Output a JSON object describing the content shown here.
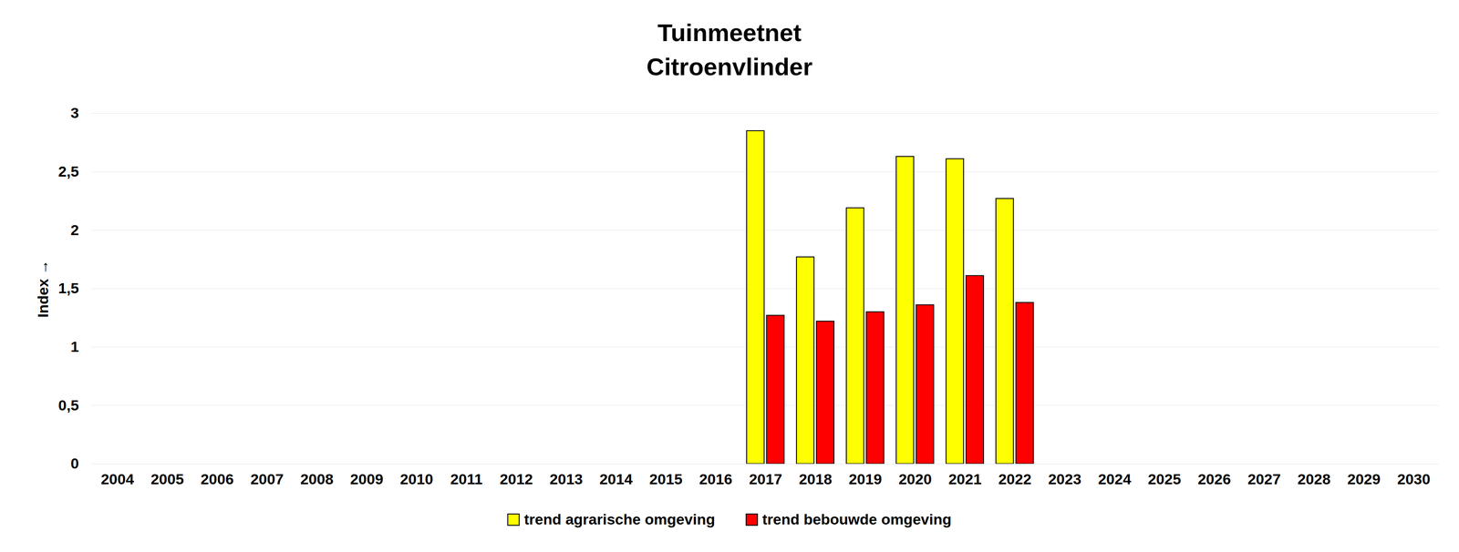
{
  "chart_data": {
    "type": "bar",
    "title": "Tuinmeetnet",
    "subtitle": "Citroenvlinder",
    "y_label": "Index",
    "categories": [
      "2004",
      "2005",
      "2006",
      "2007",
      "2008",
      "2009",
      "2010",
      "2011",
      "2012",
      "2013",
      "2014",
      "2015",
      "2016",
      "2017",
      "2018",
      "2019",
      "2020",
      "2021",
      "2022",
      "2023",
      "2024",
      "2025",
      "2026",
      "2027",
      "2028",
      "2029",
      "2030"
    ],
    "series": [
      {
        "name": "trend agrarische omgeving",
        "color": "#ffff00",
        "values": [
          null,
          null,
          null,
          null,
          null,
          null,
          null,
          null,
          null,
          null,
          null,
          null,
          null,
          2.85,
          1.77,
          2.19,
          2.63,
          2.61,
          2.27,
          null,
          null,
          null,
          null,
          null,
          null,
          null,
          null
        ]
      },
      {
        "name": "trend bebouwde omgeving",
        "color": "#ff0000",
        "values": [
          null,
          null,
          null,
          null,
          null,
          null,
          null,
          null,
          null,
          null,
          null,
          null,
          null,
          1.27,
          1.22,
          1.3,
          1.36,
          1.61,
          1.38,
          null,
          null,
          null,
          null,
          null,
          null,
          null,
          null
        ]
      }
    ],
    "ylim": [
      0,
      3
    ],
    "yticks": [
      0,
      {
        "value": 0.5,
        "label": "0,5"
      },
      1,
      {
        "value": 1.5,
        "label": "1,5"
      },
      2,
      {
        "value": 2.5,
        "label": "2,5"
      },
      3
    ],
    "grid": true,
    "legend": "bottom"
  }
}
